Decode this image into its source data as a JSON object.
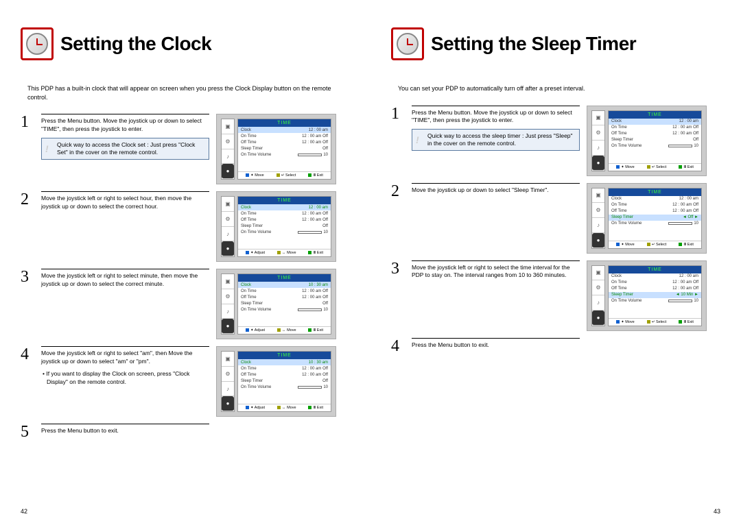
{
  "left": {
    "title": "Setting the Clock",
    "intro": "This PDP has a built-in clock that will appear on screen when you press the Clock Display button on the remote control.",
    "page_num": "42",
    "steps": [
      {
        "num": "1",
        "text": "Press the Menu button. Move the joystick up or down to select \"TIME\", then press the joystick to enter.",
        "tip": "Quick way to access the Clock set : Just press \"Clock Set\" in the cover on the remote control.",
        "menu": {
          "title": "TIME",
          "rows": [
            {
              "k": "Clock",
              "v": "12 : 00  am",
              "hl": true
            },
            {
              "k": "On Time",
              "v": "12 : 00  am  Off"
            },
            {
              "k": "Off Time",
              "v": "12 : 00  am  Off"
            },
            {
              "k": "Sleep Timer",
              "v": "Off"
            },
            {
              "k": "On Time Volume",
              "v": "10",
              "bar": true
            }
          ],
          "foot": [
            "Move",
            "Select",
            "Exit"
          ],
          "foot_sym": [
            "✦",
            "↵",
            "Ⅲ"
          ]
        }
      },
      {
        "num": "2",
        "text": "Move the joystick left or right to select  hour, then move the joystick up or down to select the correct hour.",
        "menu": {
          "title": "TIME",
          "rows": [
            {
              "k": "Clock",
              "v": "12 : 00  am",
              "hl": true,
              "green": true
            },
            {
              "k": "On Time",
              "v": "12 : 00  am  Off"
            },
            {
              "k": "Off Time",
              "v": "12 : 00  am  Off"
            },
            {
              "k": "Sleep Timer",
              "v": "Off"
            },
            {
              "k": "On Time Volume",
              "v": "10",
              "bar": true
            }
          ],
          "foot": [
            "Adjust",
            "Move",
            "Exit"
          ],
          "foot_sym": [
            "✦",
            "↔",
            "Ⅲ"
          ]
        }
      },
      {
        "num": "3",
        "text": "Move the joystick left or right to select  minute, then move the joystick up or down to select the correct minute.",
        "menu": {
          "title": "TIME",
          "rows": [
            {
              "k": "Clock",
              "v": "10 : 30  am",
              "hl": true,
              "green": true
            },
            {
              "k": "On Time",
              "v": "12 : 00  am  Off"
            },
            {
              "k": "Off Time",
              "v": "12 : 00  am  Off"
            },
            {
              "k": "Sleep Timer",
              "v": "Off"
            },
            {
              "k": "On Time Volume",
              "v": "10",
              "bar": true
            }
          ],
          "foot": [
            "Adjust",
            "Move",
            "Exit"
          ],
          "foot_sym": [
            "✦",
            "↔",
            "Ⅲ"
          ]
        }
      },
      {
        "num": "4",
        "text": "Move the joystick left or right to select  \"am\", then Move the joystick up or down to select \"am\" or \"pm\".",
        "bullet": "• If you want to display the Clock on screen, press \"Clock Display\" on the remote control.",
        "menu": {
          "title": "TIME",
          "rows": [
            {
              "k": "Clock",
              "v": "10 : 30  am",
              "hl": true,
              "green": true
            },
            {
              "k": "On Time",
              "v": "12 : 00  am  Off"
            },
            {
              "k": "Off Time",
              "v": "12 : 00  am  Off"
            },
            {
              "k": "Sleep Timer",
              "v": "Off"
            },
            {
              "k": "On Time Volume",
              "v": "10",
              "bar": true
            }
          ],
          "foot": [
            "Adjust",
            "Move",
            "Exit"
          ],
          "foot_sym": [
            "✦",
            "↔",
            "Ⅲ"
          ]
        }
      },
      {
        "num": "5",
        "text": "Press the Menu button to exit."
      }
    ]
  },
  "right": {
    "title": "Setting the Sleep Timer",
    "intro": "You can set your PDP to automatically turn off after a preset interval.",
    "page_num": "43",
    "steps": [
      {
        "num": "1",
        "text": "Press the Menu button. Move the joystick up or down to select \"TIME\", then press the joystick to enter.",
        "tip": "Quick way to access the sleep timer : Just press \"Sleep\" in the cover on the remote control.",
        "menu": {
          "title": "TIME",
          "rows": [
            {
              "k": "Clock",
              "v": "12 : 00  am",
              "hl": true
            },
            {
              "k": "On Time",
              "v": "12 : 00  am  Off"
            },
            {
              "k": "Off Time",
              "v": "12 : 00  am  Off"
            },
            {
              "k": "Sleep Timer",
              "v": "Off"
            },
            {
              "k": "On Time Volume",
              "v": "10",
              "bar": true
            }
          ],
          "foot": [
            "Move",
            "Select",
            "Exit"
          ],
          "foot_sym": [
            "✦",
            "↵",
            "Ⅲ"
          ]
        }
      },
      {
        "num": "2",
        "text": "Move the joystick up or down to select \"Sleep Timer\".",
        "menu": {
          "title": "TIME",
          "rows": [
            {
              "k": "Clock",
              "v": "12 : 00  am"
            },
            {
              "k": "On Time",
              "v": "12 : 00  am  Off"
            },
            {
              "k": "Off Time",
              "v": "12 : 00  am  Off"
            },
            {
              "k": "Sleep Timer",
              "v": "Off",
              "hl": true,
              "green": true,
              "arrows": true
            },
            {
              "k": "On Time Volume",
              "v": "10",
              "bar": true
            }
          ],
          "foot": [
            "Move",
            "Select",
            "Exit"
          ],
          "foot_sym": [
            "✦",
            "↵",
            "Ⅲ"
          ]
        }
      },
      {
        "num": "3",
        "text": "Move the joystick left or right to select the time interval for the PDP to stay on. The interval ranges from 10 to 360 minutes.",
        "menu": {
          "title": "TIME",
          "rows": [
            {
              "k": "Clock",
              "v": "12 : 00  am"
            },
            {
              "k": "On Time",
              "v": "12 : 00  am  Off"
            },
            {
              "k": "Off Time",
              "v": "12 : 00  am  Off"
            },
            {
              "k": "Sleep Timer",
              "v": "10 Min",
              "hl": true,
              "green": true,
              "arrows": true
            },
            {
              "k": "On Time Volume",
              "v": "10",
              "bar": true
            }
          ],
          "foot": [
            "Move",
            "Select",
            "Exit"
          ],
          "foot_sym": [
            "✦",
            "↵",
            "Ⅲ"
          ]
        }
      },
      {
        "num": "4",
        "text": "Press the Menu button to exit."
      }
    ]
  },
  "tv_icons": [
    "▣",
    "⚙",
    "♪",
    "●"
  ],
  "colors": {
    "accent": "#c00000",
    "tip_border": "#5a7aa0",
    "tip_bg": "#eaf0f8",
    "tv_title_bg": "#164a9a",
    "tv_title_fg": "#3cff3c",
    "hl_bg": "#c8e0ff",
    "green": "#0a8a0a"
  }
}
